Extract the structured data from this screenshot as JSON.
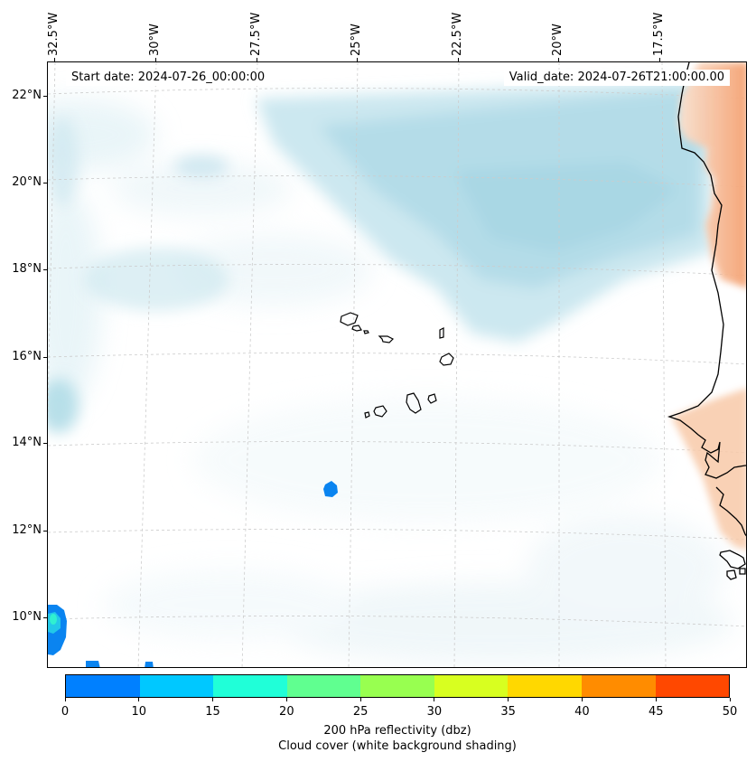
{
  "header": {
    "start_date": "Start date: 2024-07-26_00:00:00",
    "valid_date": "Valid_date: 2024-07-26T21:00:00.00"
  },
  "map": {
    "lon_labels": [
      "32.5°W",
      "30°W",
      "27.5°W",
      "25°W",
      "22.5°W",
      "20°W",
      "17.5°W"
    ],
    "lat_labels": [
      "22°N",
      "20°N",
      "18°N",
      "16°N",
      "14°N",
      "12°N",
      "10°N"
    ],
    "islands": [
      "Santo Antão",
      "São Vicente",
      "Santa Luzia",
      "São Nicolau",
      "Sal",
      "Boa Vista",
      "Maio",
      "Santiago",
      "Fogo",
      "Brava"
    ]
  },
  "colorbar": {
    "tick_labels": [
      "0",
      "10",
      "15",
      "20",
      "25",
      "30",
      "35",
      "40",
      "45",
      "50"
    ],
    "colors": [
      "#0080ff",
      "#00c8ff",
      "#20ffd8",
      "#60ff90",
      "#98ff50",
      "#d8ff20",
      "#ffd800",
      "#ff8c00",
      "#ff4800"
    ],
    "title_line1": "200 hPa reflectivity (dbz)",
    "title_line2": "Cloud cover (white background shading)"
  },
  "colors": {
    "cloud": "#add8e6",
    "land_shading": "#f4a070",
    "gridline": "#cccccc"
  }
}
